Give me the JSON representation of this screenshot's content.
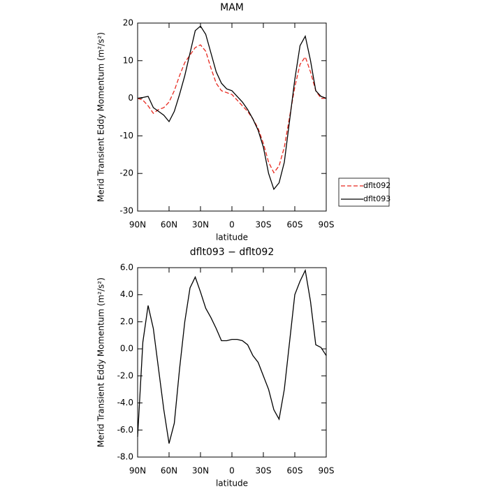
{
  "chart_data": [
    {
      "type": "line",
      "title": "MAM",
      "xlabel": "latitude",
      "ylabel": "Merid Transient Eddy Momentum (m²/s²)",
      "x": [
        90,
        85,
        80,
        75,
        70,
        65,
        60,
        55,
        50,
        45,
        40,
        35,
        30,
        25,
        20,
        15,
        10,
        5,
        0,
        -5,
        -10,
        -15,
        -20,
        -25,
        -30,
        -35,
        -40,
        -45,
        -50,
        -55,
        -60,
        -65,
        -70,
        -75,
        -80,
        -85,
        -90
      ],
      "xlim": [
        90,
        -90
      ],
      "xticks": [
        {
          "value": 90,
          "label": "90N"
        },
        {
          "value": 60,
          "label": "60N"
        },
        {
          "value": 30,
          "label": "30N"
        },
        0,
        {
          "value": -30,
          "label": "30S"
        },
        {
          "value": -60,
          "label": "60S"
        },
        {
          "value": -90,
          "label": "90S"
        }
      ],
      "ylim": [
        -30,
        20
      ],
      "yticks": [
        -30,
        -20,
        -10,
        0,
        10,
        20
      ],
      "legend": "right",
      "series": [
        {
          "name": "dflt092",
          "color": "#e8281e",
          "dashed": true,
          "values": [
            0,
            -0.5,
            -2,
            -4,
            -3,
            -2.5,
            -1,
            2,
            6,
            9.5,
            11.5,
            13.5,
            14.2,
            12.5,
            8,
            4,
            2,
            1.5,
            1,
            -0.5,
            -2,
            -3.5,
            -5.5,
            -8,
            -12,
            -17,
            -19.8,
            -18,
            -13,
            -5,
            3,
            9,
            11,
            7,
            2,
            0,
            0
          ]
        },
        {
          "name": "dflt093",
          "color": "#000000",
          "dashed": false,
          "values": [
            0,
            0.2,
            0.5,
            -2.5,
            -3.5,
            -4.5,
            -6.2,
            -3.5,
            1,
            6,
            12,
            18,
            19.2,
            17,
            12,
            7,
            4,
            2.5,
            2,
            0.5,
            -1,
            -3,
            -5.5,
            -8.5,
            -13,
            -20,
            -24.2,
            -22.5,
            -17,
            -6,
            5,
            14,
            16.5,
            10,
            2,
            0.5,
            0
          ]
        }
      ]
    },
    {
      "type": "line",
      "title": "dflt093 − dflt092",
      "xlabel": "latitude",
      "ylabel": "Merid Transient Eddy Momentum (m²/s²)",
      "x": [
        90,
        85,
        80,
        75,
        70,
        65,
        60,
        55,
        50,
        45,
        40,
        35,
        30,
        25,
        20,
        15,
        10,
        5,
        0,
        -5,
        -10,
        -15,
        -20,
        -25,
        -30,
        -35,
        -40,
        -45,
        -50,
        -55,
        -60,
        -65,
        -70,
        -75,
        -80,
        -85,
        -90
      ],
      "xlim": [
        90,
        -90
      ],
      "xticks": [
        {
          "value": 90,
          "label": "90N"
        },
        {
          "value": 60,
          "label": "60N"
        },
        {
          "value": 30,
          "label": "30N"
        },
        0,
        {
          "value": -30,
          "label": "30S"
        },
        {
          "value": -60,
          "label": "60S"
        },
        {
          "value": -90,
          "label": "90S"
        }
      ],
      "ylim": [
        -8,
        6
      ],
      "yticks": [
        {
          "value": -8,
          "label": "-8.0"
        },
        {
          "value": -6,
          "label": "-6.0"
        },
        {
          "value": -4,
          "label": "-4.0"
        },
        {
          "value": -2,
          "label": "-2.0"
        },
        {
          "value": 0,
          "label": "0.0"
        },
        {
          "value": 2,
          "label": "2.0"
        },
        {
          "value": 4,
          "label": "4.0"
        },
        {
          "value": 6,
          "label": "6.0"
        }
      ],
      "series": [
        {
          "color": "#000000",
          "dashed": false,
          "values": [
            -6.5,
            0.5,
            3.2,
            1.5,
            -1.5,
            -4.5,
            -7,
            -5.5,
            -1.5,
            2,
            4.5,
            5.3,
            4.2,
            3,
            2.3,
            1.5,
            0.6,
            0.6,
            0.7,
            0.7,
            0.6,
            0.3,
            -0.5,
            -1,
            -2,
            -3,
            -4.5,
            -5.2,
            -3,
            0.5,
            4,
            5,
            5.8,
            3.5,
            0.3,
            0.1,
            -0.5
          ]
        }
      ]
    }
  ]
}
